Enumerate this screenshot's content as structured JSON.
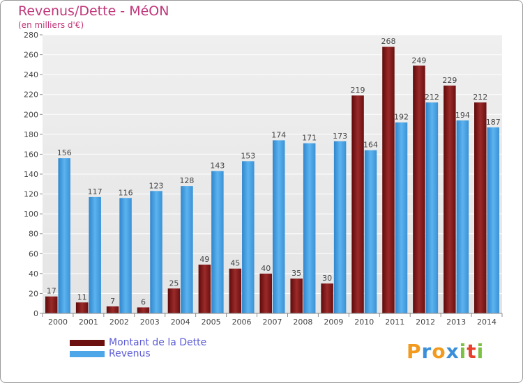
{
  "header": {
    "title": "Revenus/Dette - MéON",
    "subtitle": "(en milliers d'€)"
  },
  "chart_data": {
    "type": "bar",
    "categories": [
      "2000",
      "2001",
      "2002",
      "2003",
      "2004",
      "2005",
      "2006",
      "2007",
      "2008",
      "2009",
      "2010",
      "2011",
      "2012",
      "2013",
      "2014"
    ],
    "series": [
      {
        "name": "Montant de la Dette",
        "color": "#8b1c1c",
        "values": [
          17,
          11,
          7,
          6,
          25,
          49,
          45,
          40,
          35,
          30,
          219,
          268,
          249,
          229,
          212
        ]
      },
      {
        "name": "Revenus",
        "color": "#4da6e8",
        "values": [
          156,
          117,
          116,
          123,
          128,
          143,
          153,
          174,
          171,
          173,
          164,
          192,
          212,
          194,
          187
        ]
      }
    ],
    "ylim": [
      0,
      280
    ],
    "yticks": [
      0,
      20,
      40,
      60,
      80,
      100,
      120,
      140,
      160,
      180,
      200,
      220,
      240,
      260,
      280
    ],
    "grid": true,
    "legend_position": "bottom-left"
  },
  "legend": {
    "items": [
      {
        "label": "Montant de la Dette",
        "color": "#6b0f0f"
      },
      {
        "label": "Revenus",
        "color": "#4da6e8"
      }
    ]
  },
  "logo": {
    "letters": [
      "P",
      "r",
      "o",
      "x",
      "i",
      "t",
      "i"
    ],
    "colors": [
      "#f29a1e",
      "#3a8fd9",
      "#f29a1e",
      "#3a8fd9",
      "#7cc242",
      "#e8402c",
      "#7cc242"
    ]
  }
}
